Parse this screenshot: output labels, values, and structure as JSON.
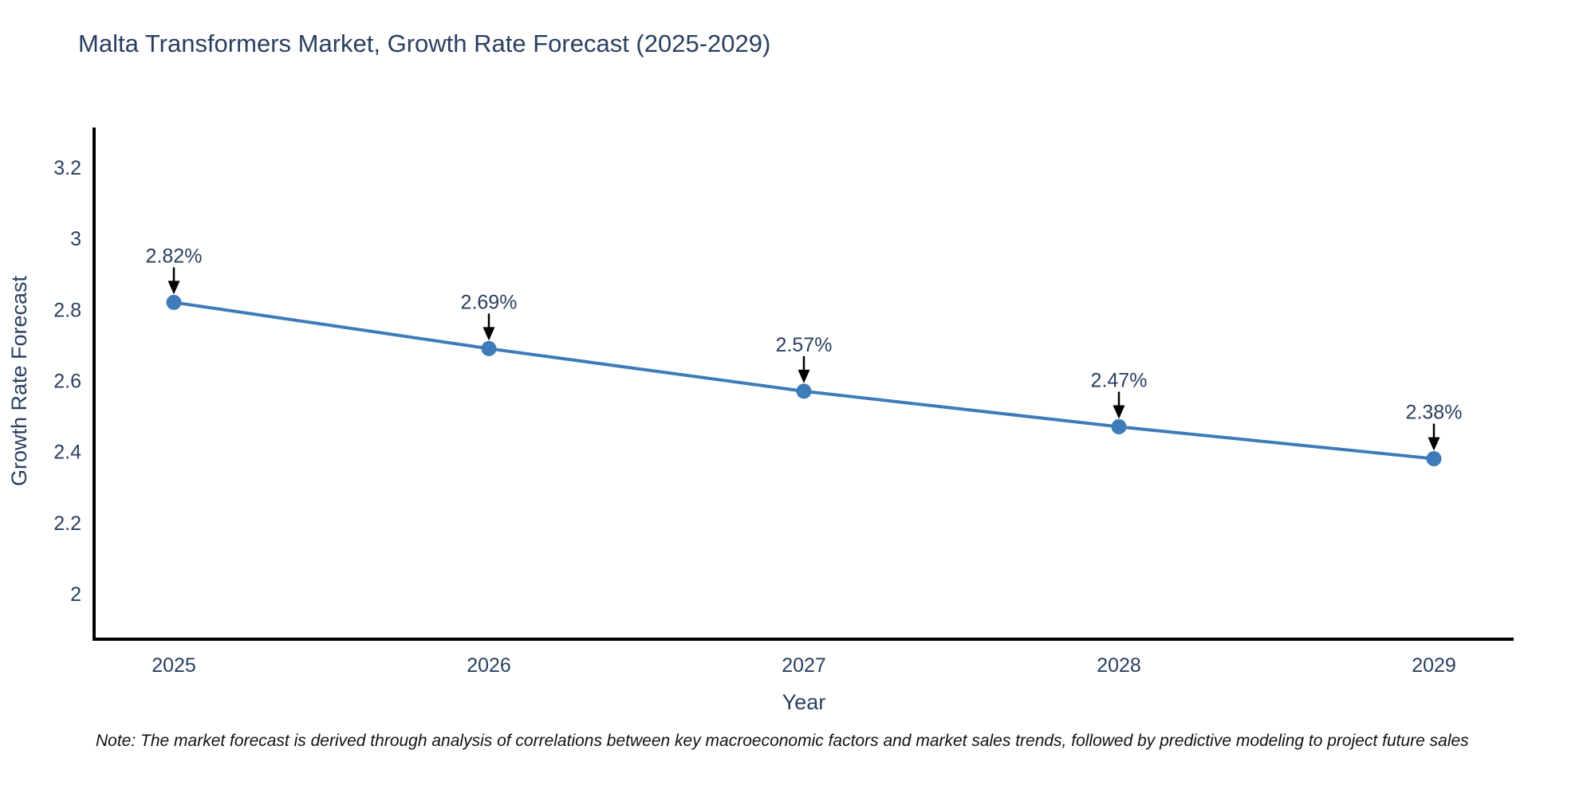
{
  "title": "Malta Transformers Market, Growth Rate Forecast (2025-2029)",
  "note": "Note: The market forecast is derived through analysis of correlations between key macroeconomic factors and market sales trends, followed by predictive modeling to project future sales",
  "chart_data": {
    "type": "line",
    "title": "Malta Transformers Market, Growth Rate Forecast (2025-2029)",
    "categories": [
      "2025",
      "2026",
      "2027",
      "2028",
      "2029"
    ],
    "series": [
      {
        "name": "Growth Rate Forecast",
        "values": [
          2.82,
          2.69,
          2.57,
          2.47,
          2.38
        ]
      }
    ],
    "point_labels": [
      "2.82%",
      "2.69%",
      "2.57%",
      "2.47%",
      "2.38%"
    ],
    "xlabel": "Year",
    "ylabel": "Growth Rate Forecast",
    "yticks": [
      2,
      2.2,
      2.4,
      2.6,
      2.8,
      3,
      3.2
    ],
    "ylim": [
      1.87,
      3.31
    ],
    "grid": false,
    "legend_position": "none",
    "colors": {
      "line": "#3d7cb8",
      "marker": "#3d7cb8",
      "axis": "#000000",
      "tick_text": "#2a3f5f",
      "axis_title_text": "#2a3f5f",
      "annotation_text": "#2a3f5f",
      "annotation_arrow": "#000000",
      "note_text": "#111111",
      "background": "#ffffff"
    }
  }
}
